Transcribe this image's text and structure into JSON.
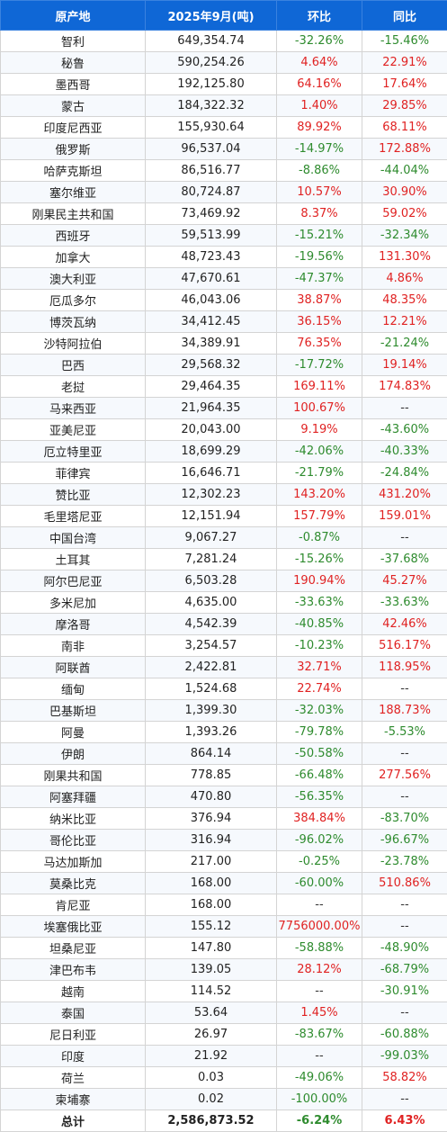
{
  "headers": [
    "原产地",
    "2025年9月(吨)",
    "环比",
    "同比"
  ],
  "rows": [
    [
      "智利",
      "649,354.74",
      "-32.26%",
      "-15.46%"
    ],
    [
      "秘鲁",
      "590,254.26",
      "4.64%",
      "22.91%"
    ],
    [
      "墨西哥",
      "192,125.80",
      "64.16%",
      "17.64%"
    ],
    [
      "蒙古",
      "184,322.32",
      "1.40%",
      "29.85%"
    ],
    [
      "印度尼西亚",
      "155,930.64",
      "89.92%",
      "68.11%"
    ],
    [
      "俄罗斯",
      "96,537.04",
      "-14.97%",
      "172.88%"
    ],
    [
      "哈萨克斯坦",
      "86,516.77",
      "-8.86%",
      "-44.04%"
    ],
    [
      "塞尔维亚",
      "80,724.87",
      "10.57%",
      "30.90%"
    ],
    [
      "刚果民主共和国",
      "73,469.92",
      "8.37%",
      "59.02%"
    ],
    [
      "西班牙",
      "59,513.99",
      "-15.21%",
      "-32.34%"
    ],
    [
      "加拿大",
      "48,723.43",
      "-19.56%",
      "131.30%"
    ],
    [
      "澳大利亚",
      "47,670.61",
      "-47.37%",
      "4.86%"
    ],
    [
      "厄瓜多尔",
      "46,043.06",
      "38.87%",
      "48.35%"
    ],
    [
      "博茨瓦纳",
      "34,412.45",
      "36.15%",
      "12.21%"
    ],
    [
      "沙特阿拉伯",
      "34,389.91",
      "76.35%",
      "-21.24%"
    ],
    [
      "巴西",
      "29,568.32",
      "-17.72%",
      "19.14%"
    ],
    [
      "老挝",
      "29,464.35",
      "169.11%",
      "174.83%"
    ],
    [
      "马来西亚",
      "21,964.35",
      "100.67%",
      "--"
    ],
    [
      "亚美尼亚",
      "20,043.00",
      "9.19%",
      "-43.60%"
    ],
    [
      "厄立特里亚",
      "18,699.29",
      "-42.06%",
      "-40.33%"
    ],
    [
      "菲律宾",
      "16,646.71",
      "-21.79%",
      "-24.84%"
    ],
    [
      "赞比亚",
      "12,302.23",
      "143.20%",
      "431.20%"
    ],
    [
      "毛里塔尼亚",
      "12,151.94",
      "157.79%",
      "159.01%"
    ],
    [
      "中国台湾",
      "9,067.27",
      "-0.87%",
      "--"
    ],
    [
      "土耳其",
      "7,281.24",
      "-15.26%",
      "-37.68%"
    ],
    [
      "阿尔巴尼亚",
      "6,503.28",
      "190.94%",
      "45.27%"
    ],
    [
      "多米尼加",
      "4,635.00",
      "-33.63%",
      "-33.63%"
    ],
    [
      "摩洛哥",
      "4,542.39",
      "-40.85%",
      "42.46%"
    ],
    [
      "南非",
      "3,254.57",
      "-10.23%",
      "516.17%"
    ],
    [
      "阿联酋",
      "2,422.81",
      "32.71%",
      "118.95%"
    ],
    [
      "缅甸",
      "1,524.68",
      "22.74%",
      "--"
    ],
    [
      "巴基斯坦",
      "1,399.30",
      "-32.03%",
      "188.73%"
    ],
    [
      "阿曼",
      "1,393.26",
      "-79.78%",
      "-5.53%"
    ],
    [
      "伊朗",
      "864.14",
      "-50.58%",
      "--"
    ],
    [
      "刚果共和国",
      "778.85",
      "-66.48%",
      "277.56%"
    ],
    [
      "阿塞拜疆",
      "470.80",
      "-56.35%",
      "--"
    ],
    [
      "纳米比亚",
      "376.94",
      "384.84%",
      "-83.70%"
    ],
    [
      "哥伦比亚",
      "316.94",
      "-96.02%",
      "-96.67%"
    ],
    [
      "马达加斯加",
      "217.00",
      "-0.25%",
      "-23.78%"
    ],
    [
      "莫桑比克",
      "168.00",
      "-60.00%",
      "510.86%"
    ],
    [
      "肯尼亚",
      "168.00",
      "--",
      "--"
    ],
    [
      "埃塞俄比亚",
      "155.12",
      "7756000.00%",
      "--"
    ],
    [
      "坦桑尼亚",
      "147.80",
      "-58.88%",
      "-48.90%"
    ],
    [
      "津巴布韦",
      "139.05",
      "28.12%",
      "-68.79%"
    ],
    [
      "越南",
      "114.52",
      "--",
      "-30.91%"
    ],
    [
      "泰国",
      "53.64",
      "1.45%",
      "--"
    ],
    [
      "尼日利亚",
      "26.97",
      "-83.67%",
      "-60.88%"
    ],
    [
      "印度",
      "21.92",
      "--",
      "-99.03%"
    ],
    [
      "荷兰",
      "0.03",
      "-49.06%",
      "58.82%"
    ],
    [
      "柬埔寨",
      "0.02",
      "-100.00%",
      "--"
    ]
  ],
  "total": [
    "总计",
    "2,586,873.52",
    "-6.24%",
    "6.43%"
  ],
  "colors": {
    "header_bg": "#0f67d6",
    "negative": "#2e8b2e",
    "positive": "#e02222"
  }
}
